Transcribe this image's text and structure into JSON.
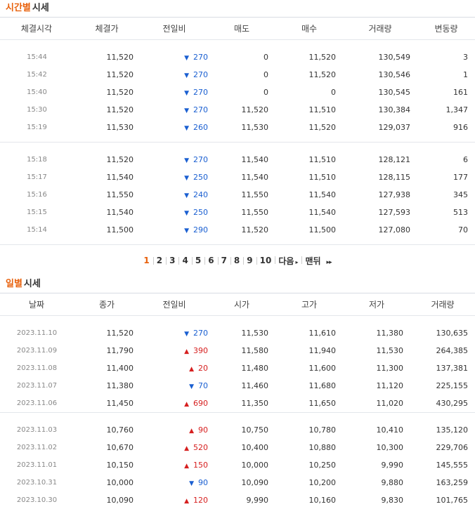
{
  "time_section": {
    "title_accent": "시간별",
    "title_rest": "시세",
    "headers": [
      "체결시각",
      "체결가",
      "전일비",
      "매도",
      "매수",
      "거래량",
      "변동량"
    ],
    "groups": [
      [
        {
          "time": "15:44",
          "price": "11,520",
          "dir": "down",
          "diff": "270",
          "ask": "0",
          "bid": "11,520",
          "volume": "130,549",
          "change": "3"
        },
        {
          "time": "15:42",
          "price": "11,520",
          "dir": "down",
          "diff": "270",
          "ask": "0",
          "bid": "11,520",
          "volume": "130,546",
          "change": "1"
        },
        {
          "time": "15:40",
          "price": "11,520",
          "dir": "down",
          "diff": "270",
          "ask": "0",
          "bid": "0",
          "volume": "130,545",
          "change": "161"
        },
        {
          "time": "15:30",
          "price": "11,520",
          "dir": "down",
          "diff": "270",
          "ask": "11,520",
          "bid": "11,510",
          "volume": "130,384",
          "change": "1,347"
        },
        {
          "time": "15:19",
          "price": "11,530",
          "dir": "down",
          "diff": "260",
          "ask": "11,530",
          "bid": "11,520",
          "volume": "129,037",
          "change": "916"
        }
      ],
      [
        {
          "time": "15:18",
          "price": "11,520",
          "dir": "down",
          "diff": "270",
          "ask": "11,540",
          "bid": "11,510",
          "volume": "128,121",
          "change": "6"
        },
        {
          "time": "15:17",
          "price": "11,540",
          "dir": "down",
          "diff": "250",
          "ask": "11,540",
          "bid": "11,510",
          "volume": "128,115",
          "change": "177"
        },
        {
          "time": "15:16",
          "price": "11,550",
          "dir": "down",
          "diff": "240",
          "ask": "11,550",
          "bid": "11,540",
          "volume": "127,938",
          "change": "345"
        },
        {
          "time": "15:15",
          "price": "11,540",
          "dir": "down",
          "diff": "250",
          "ask": "11,550",
          "bid": "11,540",
          "volume": "127,593",
          "change": "513"
        },
        {
          "time": "15:14",
          "price": "11,500",
          "dir": "down",
          "diff": "290",
          "ask": "11,520",
          "bid": "11,500",
          "volume": "127,080",
          "change": "70"
        }
      ]
    ]
  },
  "pagination": {
    "pages": [
      "1",
      "2",
      "3",
      "4",
      "5",
      "6",
      "7",
      "8",
      "9",
      "10"
    ],
    "active": "1",
    "next_label": "다음",
    "last_label": "맨뒤",
    "next_arrow": "▸",
    "last_arrow": "▸▸"
  },
  "daily_section": {
    "title_accent": "일별",
    "title_rest": "시세",
    "headers": [
      "날짜",
      "종가",
      "전일비",
      "시가",
      "고가",
      "저가",
      "거래량"
    ],
    "groups": [
      [
        {
          "date": "2023.11.10",
          "close": "11,520",
          "dir": "down",
          "diff": "270",
          "open": "11,530",
          "high": "11,610",
          "low": "11,380",
          "volume": "130,635"
        },
        {
          "date": "2023.11.09",
          "close": "11,790",
          "dir": "up",
          "diff": "390",
          "open": "11,580",
          "high": "11,940",
          "low": "11,530",
          "volume": "264,385"
        },
        {
          "date": "2023.11.08",
          "close": "11,400",
          "dir": "up",
          "diff": "20",
          "open": "11,480",
          "high": "11,600",
          "low": "11,300",
          "volume": "137,381"
        },
        {
          "date": "2023.11.07",
          "close": "11,380",
          "dir": "down",
          "diff": "70",
          "open": "11,460",
          "high": "11,680",
          "low": "11,120",
          "volume": "225,155"
        },
        {
          "date": "2023.11.06",
          "close": "11,450",
          "dir": "up",
          "diff": "690",
          "open": "11,350",
          "high": "11,650",
          "low": "11,020",
          "volume": "430,295"
        }
      ],
      [
        {
          "date": "2023.11.03",
          "close": "10,760",
          "dir": "up",
          "diff": "90",
          "open": "10,750",
          "high": "10,780",
          "low": "10,410",
          "volume": "135,120"
        },
        {
          "date": "2023.11.02",
          "close": "10,670",
          "dir": "up",
          "diff": "520",
          "open": "10,400",
          "high": "10,880",
          "low": "10,300",
          "volume": "229,706"
        },
        {
          "date": "2023.11.01",
          "close": "10,150",
          "dir": "up",
          "diff": "150",
          "open": "10,000",
          "high": "10,250",
          "low": "9,990",
          "volume": "145,555"
        },
        {
          "date": "2023.10.31",
          "close": "10,000",
          "dir": "down",
          "diff": "90",
          "open": "10,090",
          "high": "10,200",
          "low": "9,880",
          "volume": "163,259"
        },
        {
          "date": "2023.10.30",
          "close": "10,090",
          "dir": "up",
          "diff": "120",
          "open": "9,990",
          "high": "10,160",
          "low": "9,830",
          "volume": "101,765"
        }
      ]
    ]
  },
  "icons": {
    "down": "▼",
    "up": "▲"
  },
  "colors": {
    "accent": "#e8610c",
    "down": "#1a5fd1",
    "up": "#d61f1f"
  }
}
